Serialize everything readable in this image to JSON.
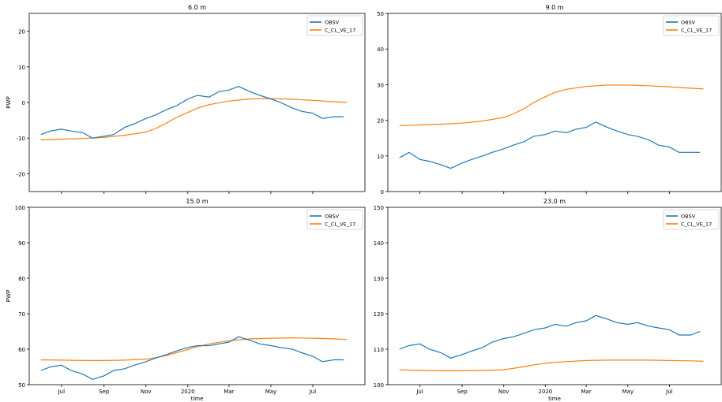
{
  "chart_data": [
    {
      "type": "line",
      "title": "6.0 m",
      "xlabel": "",
      "ylabel": "PWP",
      "ylim": [
        -25,
        25
      ],
      "yticks": [
        -20,
        -10,
        0,
        10,
        20
      ],
      "xlim": [
        "2019-05-15",
        "2020-09-15"
      ],
      "xticks": [
        {
          "date": "2019-07-01",
          "label": "Jul"
        },
        {
          "date": "2019-09-01",
          "label": "Sep"
        },
        {
          "date": "2019-11-01",
          "label": "Nov"
        },
        {
          "date": "2020-01-01",
          "label": "2020"
        },
        {
          "date": "2020-03-01",
          "label": "Mar"
        },
        {
          "date": "2020-05-01",
          "label": "May"
        },
        {
          "date": "2020-07-01",
          "label": "Jul"
        }
      ],
      "show_xtick_labels": false,
      "legend": {
        "placement": "top-right",
        "entries": [
          "OBSV",
          "C_CL_VE_17"
        ]
      },
      "series": [
        {
          "name": "OBSV",
          "color": "#1f77b4",
          "x": [
            "2019-06-01",
            "2019-06-15",
            "2019-07-01",
            "2019-07-15",
            "2019-08-01",
            "2019-08-15",
            "2019-09-01",
            "2019-09-15",
            "2019-10-01",
            "2019-10-15",
            "2019-11-01",
            "2019-11-15",
            "2019-12-01",
            "2019-12-15",
            "2020-01-01",
            "2020-01-15",
            "2020-02-01",
            "2020-02-15",
            "2020-03-01",
            "2020-03-15",
            "2020-04-01",
            "2020-04-15",
            "2020-05-01",
            "2020-05-15",
            "2020-06-01",
            "2020-06-15",
            "2020-07-01",
            "2020-07-15",
            "2020-08-01",
            "2020-08-15"
          ],
          "y": [
            -9,
            -8,
            -7.5,
            -8,
            -8.5,
            -10,
            -9.5,
            -9,
            -7,
            -6,
            -4.5,
            -3.5,
            -2,
            -1,
            1,
            2,
            1.5,
            3,
            3.5,
            4.5,
            3,
            2,
            1,
            0,
            -1.5,
            -2.5,
            -3,
            -4.5,
            -4,
            -4
          ]
        },
        {
          "name": "C_CL_VE_17",
          "color": "#ff7f0e",
          "x": [
            "2019-06-01",
            "2019-07-01",
            "2019-08-01",
            "2019-09-01",
            "2019-10-01",
            "2019-11-01",
            "2019-11-15",
            "2019-12-01",
            "2019-12-15",
            "2020-01-01",
            "2020-01-15",
            "2020-02-01",
            "2020-03-01",
            "2020-04-01",
            "2020-05-01",
            "2020-06-01",
            "2020-07-01",
            "2020-08-01",
            "2020-08-20"
          ],
          "y": [
            -10.5,
            -10.3,
            -10.1,
            -9.8,
            -9.2,
            -8.3,
            -7.3,
            -5.8,
            -4.2,
            -2.8,
            -1.6,
            -0.6,
            0.4,
            1.0,
            1.1,
            0.9,
            0.6,
            0.2,
            0.0
          ]
        }
      ]
    },
    {
      "type": "line",
      "title": "9.0 m",
      "xlabel": "",
      "ylabel": "",
      "ylim": [
        0,
        50
      ],
      "yticks": [
        0,
        10,
        20,
        30,
        40,
        50
      ],
      "xlim": [
        "2019-05-15",
        "2020-09-15"
      ],
      "xticks": [
        {
          "date": "2019-07-01",
          "label": "Jul"
        },
        {
          "date": "2019-09-01",
          "label": "Sep"
        },
        {
          "date": "2019-11-01",
          "label": "Nov"
        },
        {
          "date": "2020-01-01",
          "label": "2020"
        },
        {
          "date": "2020-03-01",
          "label": "Mar"
        },
        {
          "date": "2020-05-01",
          "label": "May"
        },
        {
          "date": "2020-07-01",
          "label": "Jul"
        }
      ],
      "show_xtick_labels": false,
      "legend": {
        "placement": "top-right",
        "entries": [
          "OBSV",
          "C_CL_VE_17"
        ]
      },
      "series": [
        {
          "name": "OBSV",
          "color": "#1f77b4",
          "x": [
            "2019-06-01",
            "2019-06-15",
            "2019-07-01",
            "2019-07-15",
            "2019-08-01",
            "2019-08-15",
            "2019-09-01",
            "2019-09-15",
            "2019-10-01",
            "2019-10-15",
            "2019-11-01",
            "2019-11-15",
            "2019-12-01",
            "2019-12-15",
            "2020-01-01",
            "2020-01-15",
            "2020-02-01",
            "2020-02-15",
            "2020-03-01",
            "2020-03-15",
            "2020-04-01",
            "2020-04-15",
            "2020-05-01",
            "2020-05-15",
            "2020-06-01",
            "2020-06-15",
            "2020-07-01",
            "2020-07-15",
            "2020-08-01",
            "2020-08-15"
          ],
          "y": [
            9.5,
            11,
            9,
            8.5,
            7.5,
            6.5,
            8,
            9,
            10,
            11,
            12,
            13,
            14,
            15.5,
            16,
            17,
            16.5,
            17.5,
            18,
            19.5,
            18,
            17,
            16,
            15.5,
            14.5,
            13,
            12.5,
            11,
            11,
            11
          ]
        },
        {
          "name": "C_CL_VE_17",
          "color": "#ff7f0e",
          "x": [
            "2019-06-01",
            "2019-07-01",
            "2019-08-01",
            "2019-09-01",
            "2019-10-01",
            "2019-11-01",
            "2019-11-15",
            "2019-12-01",
            "2019-12-15",
            "2020-01-01",
            "2020-01-15",
            "2020-02-01",
            "2020-03-01",
            "2020-04-01",
            "2020-05-01",
            "2020-06-01",
            "2020-07-01",
            "2020-08-01",
            "2020-08-20"
          ],
          "y": [
            18.5,
            18.7,
            18.9,
            19.2,
            19.8,
            20.8,
            21.8,
            23.3,
            25.0,
            26.6,
            27.8,
            28.7,
            29.5,
            29.9,
            29.9,
            29.7,
            29.4,
            29.0,
            28.8
          ]
        }
      ]
    },
    {
      "type": "line",
      "title": "15.0 m",
      "xlabel": "time",
      "ylabel": "PWP",
      "ylim": [
        50,
        100
      ],
      "yticks": [
        50,
        60,
        70,
        80,
        90,
        100
      ],
      "xlim": [
        "2019-05-15",
        "2020-09-15"
      ],
      "xticks": [
        {
          "date": "2019-07-01",
          "label": "Jul"
        },
        {
          "date": "2019-09-01",
          "label": "Sep"
        },
        {
          "date": "2019-11-01",
          "label": "Nov"
        },
        {
          "date": "2020-01-01",
          "label": "2020"
        },
        {
          "date": "2020-03-01",
          "label": "Mar"
        },
        {
          "date": "2020-05-01",
          "label": "May"
        },
        {
          "date": "2020-07-01",
          "label": "Jul"
        }
      ],
      "show_xtick_labels": true,
      "legend": {
        "placement": "top-right",
        "entries": [
          "OBSV",
          "C_CL_VE_17"
        ]
      },
      "series": [
        {
          "name": "OBSV",
          "color": "#1f77b4",
          "x": [
            "2019-06-01",
            "2019-06-15",
            "2019-07-01",
            "2019-07-15",
            "2019-08-01",
            "2019-08-15",
            "2019-09-01",
            "2019-09-15",
            "2019-10-01",
            "2019-10-15",
            "2019-11-01",
            "2019-11-15",
            "2019-12-01",
            "2019-12-15",
            "2020-01-01",
            "2020-01-15",
            "2020-02-01",
            "2020-02-15",
            "2020-03-01",
            "2020-03-15",
            "2020-04-01",
            "2020-04-15",
            "2020-05-01",
            "2020-05-15",
            "2020-06-01",
            "2020-06-15",
            "2020-07-01",
            "2020-07-15",
            "2020-08-01",
            "2020-08-15"
          ],
          "y": [
            54,
            55,
            55.5,
            54,
            53,
            51.5,
            52.5,
            54,
            54.5,
            55.5,
            56.5,
            57.5,
            58.5,
            59.5,
            60.5,
            61,
            61,
            61.5,
            62,
            63.5,
            62.5,
            61.5,
            61,
            60.5,
            60,
            59,
            58,
            56.5,
            57,
            57
          ]
        },
        {
          "name": "C_CL_VE_17",
          "color": "#ff7f0e",
          "x": [
            "2019-06-01",
            "2019-07-01",
            "2019-08-01",
            "2019-09-01",
            "2019-10-01",
            "2019-11-01",
            "2019-11-15",
            "2019-12-01",
            "2019-12-15",
            "2020-01-01",
            "2020-01-15",
            "2020-02-01",
            "2020-03-01",
            "2020-04-01",
            "2020-05-01",
            "2020-06-01",
            "2020-07-01",
            "2020-08-01",
            "2020-08-20"
          ],
          "y": [
            57.0,
            56.9,
            56.8,
            56.8,
            56.9,
            57.2,
            57.6,
            58.2,
            59.0,
            59.9,
            60.7,
            61.5,
            62.4,
            62.9,
            63.1,
            63.2,
            63.1,
            62.9,
            62.7
          ]
        }
      ]
    },
    {
      "type": "line",
      "title": "23.0 m",
      "xlabel": "time",
      "ylabel": "",
      "ylim": [
        100,
        150
      ],
      "yticks": [
        100,
        110,
        120,
        130,
        140,
        150
      ],
      "xlim": [
        "2019-05-15",
        "2020-09-15"
      ],
      "xticks": [
        {
          "date": "2019-07-01",
          "label": "Jul"
        },
        {
          "date": "2019-09-01",
          "label": "Sep"
        },
        {
          "date": "2019-11-01",
          "label": "Nov"
        },
        {
          "date": "2020-01-01",
          "label": "2020"
        },
        {
          "date": "2020-03-01",
          "label": "Mar"
        },
        {
          "date": "2020-05-01",
          "label": "May"
        },
        {
          "date": "2020-07-01",
          "label": "Jul"
        }
      ],
      "show_xtick_labels": true,
      "legend": {
        "placement": "top-right",
        "entries": [
          "OBSV",
          "C_CL_VE_17"
        ]
      },
      "series": [
        {
          "name": "OBSV",
          "color": "#1f77b4",
          "x": [
            "2019-06-01",
            "2019-06-15",
            "2019-07-01",
            "2019-07-15",
            "2019-08-01",
            "2019-08-15",
            "2019-09-01",
            "2019-09-15",
            "2019-10-01",
            "2019-10-15",
            "2019-11-01",
            "2019-11-15",
            "2019-12-01",
            "2019-12-15",
            "2020-01-01",
            "2020-01-15",
            "2020-02-01",
            "2020-02-15",
            "2020-03-01",
            "2020-03-15",
            "2020-04-01",
            "2020-04-15",
            "2020-05-01",
            "2020-05-15",
            "2020-06-01",
            "2020-06-15",
            "2020-07-01",
            "2020-07-15",
            "2020-08-01",
            "2020-08-15"
          ],
          "y": [
            110,
            111,
            111.5,
            110,
            109,
            107.5,
            108.5,
            109.5,
            110.5,
            112,
            113,
            113.5,
            114.5,
            115.5,
            116,
            117,
            116.5,
            117.5,
            118,
            119.5,
            118.5,
            117.5,
            117,
            117.5,
            116.5,
            116,
            115.5,
            114,
            114,
            115
          ]
        },
        {
          "name": "C_CL_VE_17",
          "color": "#ff7f0e",
          "x": [
            "2019-06-01",
            "2019-07-01",
            "2019-08-01",
            "2019-09-01",
            "2019-10-01",
            "2019-11-01",
            "2019-11-15",
            "2019-12-01",
            "2019-12-15",
            "2020-01-01",
            "2020-01-15",
            "2020-02-01",
            "2020-03-01",
            "2020-04-01",
            "2020-05-01",
            "2020-06-01",
            "2020-07-01",
            "2020-08-01",
            "2020-08-20"
          ],
          "y": [
            104.2,
            104.0,
            103.9,
            103.9,
            104.0,
            104.2,
            104.6,
            105.1,
            105.6,
            106.0,
            106.3,
            106.5,
            106.8,
            106.9,
            106.9,
            106.9,
            106.8,
            106.7,
            106.6
          ]
        }
      ]
    }
  ]
}
